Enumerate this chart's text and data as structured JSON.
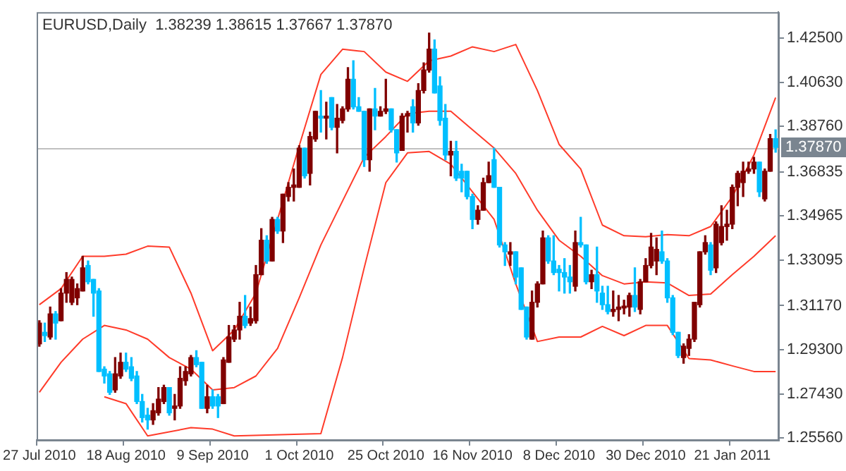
{
  "chart_data": {
    "type": "candlestick",
    "title": "EURUSD,Daily  1.38239 1.38615 1.37667 1.37870",
    "categories": [
      "27 Jul 2010",
      null,
      null,
      null,
      null,
      null,
      null,
      null,
      null,
      null,
      null,
      null,
      null,
      null,
      null,
      null,
      "18 Aug 2010",
      null,
      null,
      null,
      null,
      null,
      null,
      null,
      null,
      null,
      null,
      null,
      null,
      null,
      null,
      null,
      "9 Sep 2010",
      null,
      null,
      null,
      null,
      null,
      null,
      null,
      null,
      null,
      null,
      null,
      null,
      null,
      null,
      null,
      "1 Oct 2010",
      null,
      null,
      null,
      null,
      null,
      null,
      null,
      null,
      null,
      null,
      null,
      null,
      null,
      null,
      null,
      "25 Oct 2010",
      null,
      null,
      null,
      null,
      null,
      null,
      null,
      null,
      null,
      null,
      null,
      null,
      null,
      null,
      null,
      "16 Nov 2010",
      null,
      null,
      null,
      null,
      null,
      null,
      null,
      null,
      null,
      null,
      null,
      null,
      null,
      null,
      null,
      "8 Dec 2010",
      null,
      null,
      null,
      null,
      null,
      null,
      null,
      null,
      null,
      null,
      null,
      null,
      null,
      null,
      null,
      "30 Dec 2010",
      null,
      null,
      null,
      null,
      null,
      null,
      null,
      null,
      null,
      null,
      null,
      null,
      null,
      null,
      null,
      "21 Jan 2011",
      null,
      null,
      null,
      null,
      null,
      null,
      null,
      null
    ],
    "ohlc": [
      [
        1.2955,
        1.3053,
        1.2945,
        1.3043
      ],
      [
        1.3004,
        1.3043,
        1.2965,
        1.299
      ],
      [
        1.2984,
        1.3111,
        1.2975,
        1.3082
      ],
      [
        1.3082,
        1.3092,
        1.2975,
        1.3043
      ],
      [
        1.3053,
        1.3189,
        1.3053,
        1.317
      ],
      [
        1.317,
        1.3257,
        1.3131,
        1.3228
      ],
      [
        1.3131,
        1.3238,
        1.3121,
        1.3228
      ],
      [
        1.315,
        1.3209,
        1.3121,
        1.3189
      ],
      [
        1.3179,
        1.3326,
        1.3179,
        1.3277
      ],
      [
        1.3287,
        1.3306,
        1.3209,
        1.3218
      ],
      [
        1.3228,
        1.3228,
        1.3072,
        1.317
      ],
      [
        1.3179,
        1.3189,
        1.2838,
        1.2838
      ],
      [
        1.2848,
        1.2858,
        1.2789,
        1.2819
      ],
      [
        1.2828,
        1.2838,
        1.2741,
        1.275
      ],
      [
        1.276,
        1.2897,
        1.275,
        1.2828
      ],
      [
        1.2819,
        1.2916,
        1.2809,
        1.2877
      ],
      [
        1.2877,
        1.2916,
        1.2838,
        1.2848
      ],
      [
        1.2858,
        1.2897,
        1.2799,
        1.2809
      ],
      [
        1.2819,
        1.2838,
        1.2702,
        1.2711
      ],
      [
        1.2711,
        1.2741,
        1.2624,
        1.2643
      ],
      [
        1.2653,
        1.2682,
        1.2594,
        1.2633
      ],
      [
        1.2633,
        1.2702,
        1.2614,
        1.2672
      ],
      [
        1.2663,
        1.277,
        1.2653,
        1.2721
      ],
      [
        1.2711,
        1.278,
        1.2702,
        1.277
      ],
      [
        1.277,
        1.277,
        1.2653,
        1.2663
      ],
      [
        1.2682,
        1.2741,
        1.2633,
        1.2692
      ],
      [
        1.2692,
        1.2858,
        1.2682,
        1.2809
      ],
      [
        1.2799,
        1.2858,
        1.278,
        1.2838
      ],
      [
        1.2828,
        1.2906,
        1.2819,
        1.2897
      ],
      [
        1.2897,
        1.2926,
        1.2858,
        1.2867
      ],
      [
        1.2877,
        1.2877,
        1.2682,
        1.2682
      ],
      [
        1.2682,
        1.278,
        1.2663,
        1.2731
      ],
      [
        1.2731,
        1.276,
        1.2682,
        1.2692
      ],
      [
        1.2731,
        1.2741,
        1.2643,
        1.2692
      ],
      [
        1.2702,
        1.2897,
        1.2702,
        1.2887
      ],
      [
        1.2877,
        1.3033,
        1.2877,
        1.2984
      ],
      [
        1.2975,
        1.3033,
        1.2965,
        1.3014
      ],
      [
        1.3014,
        1.3131,
        1.2975,
        1.3072
      ],
      [
        1.3072,
        1.316,
        1.3023,
        1.3033
      ],
      [
        1.3043,
        1.3111,
        1.3033,
        1.3062
      ],
      [
        1.3053,
        1.3287,
        1.3043,
        1.3248
      ],
      [
        1.3248,
        1.3443,
        1.3248,
        1.3394
      ],
      [
        1.3394,
        1.3413,
        1.3296,
        1.3306
      ],
      [
        1.3306,
        1.3491,
        1.3306,
        1.3482
      ],
      [
        1.3482,
        1.3491,
        1.3423,
        1.3433
      ],
      [
        1.3433,
        1.3589,
        1.3384,
        1.3589
      ],
      [
        1.3579,
        1.3638,
        1.356,
        1.3618
      ],
      [
        1.3618,
        1.3696,
        1.356,
        1.3628
      ],
      [
        1.3618,
        1.3794,
        1.3618,
        1.3784
      ],
      [
        1.3784,
        1.3784,
        1.3657,
        1.3667
      ],
      [
        1.3677,
        1.3852,
        1.3628,
        1.3833
      ],
      [
        1.3823,
        1.394,
        1.3813,
        1.394
      ],
      [
        1.392,
        1.4028,
        1.3852,
        1.3911
      ],
      [
        1.3911,
        1.3979,
        1.3823,
        1.392
      ],
      [
        1.3998,
        1.3998,
        1.3862,
        1.3872
      ],
      [
        1.3872,
        1.3969,
        1.3764,
        1.3911
      ],
      [
        1.3901,
        1.3959,
        1.3891,
        1.395
      ],
      [
        1.395,
        1.4125,
        1.394,
        1.4076
      ],
      [
        1.4076,
        1.4154,
        1.395,
        1.3959
      ],
      [
        1.3959,
        1.3998,
        1.394,
        1.394
      ],
      [
        1.394,
        1.394,
        1.3706,
        1.3735
      ],
      [
        1.3735,
        1.395,
        1.3686,
        1.395
      ],
      [
        1.395,
        1.4037,
        1.3862,
        1.392
      ],
      [
        1.392,
        1.3959,
        1.392,
        1.394
      ],
      [
        1.394,
        1.4076,
        1.393,
        1.395
      ],
      [
        1.395,
        1.395,
        1.3852,
        1.3862
      ],
      [
        1.3862,
        1.3862,
        1.3725,
        1.3764
      ],
      [
        1.3774,
        1.393,
        1.3774,
        1.392
      ],
      [
        1.392,
        1.394,
        1.3852,
        1.393
      ],
      [
        1.3959,
        1.3989,
        1.3852,
        1.3891
      ],
      [
        1.3891,
        1.4057,
        1.3881,
        1.4028
      ],
      [
        1.4028,
        1.4145,
        1.4018,
        1.4115
      ],
      [
        1.4115,
        1.4271,
        1.4106,
        1.4203
      ],
      [
        1.4203,
        1.4242,
        1.4018,
        1.4018
      ],
      [
        1.4047,
        1.4086,
        1.3881,
        1.3901
      ],
      [
        1.3911,
        1.3969,
        1.3735,
        1.3755
      ],
      [
        1.3755,
        1.3813,
        1.3667,
        1.377
      ],
      [
        1.377,
        1.3813,
        1.3647,
        1.3657
      ],
      [
        1.3686,
        1.3716,
        1.3599,
        1.3657
      ],
      [
        1.3686,
        1.3686,
        1.3569,
        1.3579
      ],
      [
        1.3579,
        1.3589,
        1.3443,
        1.3482
      ],
      [
        1.3482,
        1.354,
        1.3462,
        1.3521
      ],
      [
        1.3521,
        1.3657,
        1.3521,
        1.3638
      ],
      [
        1.3638,
        1.3725,
        1.3638,
        1.3667
      ],
      [
        1.3735,
        1.3784,
        1.3618,
        1.3618
      ],
      [
        1.3618,
        1.3618,
        1.3365,
        1.3374
      ],
      [
        1.3374,
        1.3384,
        1.3287,
        1.3345
      ],
      [
        1.3335,
        1.3384,
        1.3287,
        1.3345
      ],
      [
        1.3345,
        1.3345,
        1.3209,
        1.3238
      ],
      [
        1.3277,
        1.3277,
        1.3101,
        1.3101
      ],
      [
        1.3111,
        1.3111,
        1.2975,
        1.2984
      ],
      [
        1.2975,
        1.3179,
        1.2975,
        1.3131
      ],
      [
        1.3131,
        1.3218,
        1.3111,
        1.3209
      ],
      [
        1.3209,
        1.3433,
        1.3209,
        1.3404
      ],
      [
        1.3404,
        1.3413,
        1.3296,
        1.3306
      ],
      [
        1.3306,
        1.3413,
        1.3248,
        1.3257
      ],
      [
        1.3271,
        1.3287,
        1.3179,
        1.3257
      ],
      [
        1.3257,
        1.3316,
        1.317,
        1.3238
      ],
      [
        1.3238,
        1.3287,
        1.317,
        1.3218
      ],
      [
        1.3199,
        1.3433,
        1.3179,
        1.3384
      ],
      [
        1.3384,
        1.3491,
        1.3365,
        1.3374
      ],
      [
        1.3374,
        1.3374,
        1.3209,
        1.3218
      ],
      [
        1.3218,
        1.3267,
        1.3189,
        1.3248
      ],
      [
        1.3248,
        1.3365,
        1.3131,
        1.3179
      ],
      [
        1.317,
        1.3199,
        1.3101,
        1.3121
      ],
      [
        1.3121,
        1.3199,
        1.3082,
        1.3092
      ],
      [
        1.3092,
        1.3179,
        1.3072,
        1.3101
      ],
      [
        1.3101,
        1.316,
        1.3053,
        1.3111
      ],
      [
        1.3107,
        1.314,
        1.3082,
        1.3115
      ],
      [
        1.3111,
        1.317,
        1.3072,
        1.316
      ],
      [
        1.316,
        1.3277,
        1.3092,
        1.3111
      ],
      [
        1.3101,
        1.3228,
        1.3082,
        1.3218
      ],
      [
        1.3218,
        1.3316,
        1.3218,
        1.3287
      ],
      [
        1.3287,
        1.3423,
        1.3277,
        1.3365
      ],
      [
        1.3306,
        1.3404,
        1.3248,
        1.3355
      ],
      [
        1.3345,
        1.3433,
        1.3296,
        1.3306
      ],
      [
        1.3306,
        1.3316,
        1.3131,
        1.315
      ],
      [
        1.315,
        1.316,
        1.2994,
        1.3004
      ],
      [
        1.3004,
        1.3004,
        1.2897,
        1.2906
      ],
      [
        1.2897,
        1.2955,
        1.2873,
        1.2945
      ],
      [
        1.2936,
        1.2994,
        1.2906,
        1.2975
      ],
      [
        1.2975,
        1.3131,
        1.2965,
        1.3131
      ],
      [
        1.3121,
        1.3345,
        1.3111,
        1.3345
      ],
      [
        1.3345,
        1.3413,
        1.3335,
        1.3384
      ],
      [
        1.3374,
        1.3384,
        1.3248,
        1.3267
      ],
      [
        1.3277,
        1.3472,
        1.3257,
        1.3462
      ],
      [
        1.3384,
        1.354,
        1.3374,
        1.3452
      ],
      [
        1.3452,
        1.3521,
        1.3394,
        1.3462
      ],
      [
        1.3462,
        1.3628,
        1.3443,
        1.3618
      ],
      [
        1.3618,
        1.3686,
        1.354,
        1.3677
      ],
      [
        1.3638,
        1.3725,
        1.3579,
        1.3686
      ],
      [
        1.3686,
        1.3725,
        1.3677,
        1.3696
      ],
      [
        1.3696,
        1.3745,
        1.3677,
        1.3725
      ],
      [
        1.3725,
        1.3725,
        1.3579,
        1.3599
      ],
      [
        1.3569,
        1.3696,
        1.356,
        1.3686
      ],
      [
        1.3686,
        1.3842,
        1.3686,
        1.3824
      ],
      [
        1.38239,
        1.38615,
        1.37667,
        1.3787
      ]
    ],
    "colors": [
      "#800000",
      "#00bfff",
      "#800000",
      "#00bfff",
      "#800000",
      "#800000",
      "#800000",
      "#800000",
      "#800000",
      "#00bfff",
      "#00bfff",
      "#00bfff",
      "#00bfff",
      "#00bfff",
      "#800000",
      "#800000",
      "#00bfff",
      "#00bfff",
      "#00bfff",
      "#00bfff",
      "#00bfff",
      "#800000",
      "#800000",
      "#800000",
      "#00bfff",
      "#800000",
      "#800000",
      "#800000",
      "#800000",
      "#00bfff",
      "#00bfff",
      "#800000",
      "#00bfff",
      "#00bfff",
      "#800000",
      "#800000",
      "#800000",
      "#800000",
      "#00bfff",
      "#800000",
      "#800000",
      "#800000",
      "#00bfff",
      "#800000",
      "#00bfff",
      "#800000",
      "#800000",
      "#800000",
      "#800000",
      "#00bfff",
      "#800000",
      "#800000",
      "#00bfff",
      "#800000",
      "#00bfff",
      "#800000",
      "#800000",
      "#800000",
      "#00bfff",
      "#00bfff",
      "#00bfff",
      "#800000",
      "#00bfff",
      "#800000",
      "#800000",
      "#00bfff",
      "#00bfff",
      "#800000",
      "#800000",
      "#00bfff",
      "#800000",
      "#800000",
      "#800000",
      "#00bfff",
      "#00bfff",
      "#00bfff",
      "#800000",
      "#00bfff",
      "#00bfff",
      "#00bfff",
      "#00bfff",
      "#800000",
      "#800000",
      "#800000",
      "#00bfff",
      "#00bfff",
      "#00bfff",
      "#800000",
      "#00bfff",
      "#00bfff",
      "#00bfff",
      "#800000",
      "#800000",
      "#800000",
      "#00bfff",
      "#00bfff",
      "#00bfff",
      "#00bfff",
      "#00bfff",
      "#800000",
      "#00bfff",
      "#00bfff",
      "#800000",
      "#00bfff",
      "#00bfff",
      "#00bfff",
      "#800000",
      "#800000",
      "#800000",
      "#800000",
      "#00bfff",
      "#800000",
      "#800000",
      "#800000",
      "#800000",
      "#00bfff",
      "#00bfff",
      "#00bfff",
      "#00bfff",
      "#800000",
      "#800000",
      "#800000",
      "#800000",
      "#800000",
      "#00bfff",
      "#800000",
      "#800000",
      "#800000",
      "#800000",
      "#800000",
      "#800000",
      "#800000",
      "#800000",
      "#00bfff",
      "#800000",
      "#800000",
      "#00bfff"
    ],
    "series": [
      {
        "type": "line",
        "color": "#ff3b2a",
        "values": [
          1.3121,
          null,
          null,
          null,
          1.3189,
          null,
          null,
          null,
          1.3326,
          null,
          null,
          null,
          1.3326,
          null,
          null,
          null,
          1.3335,
          null,
          null,
          null,
          1.3369,
          null,
          null,
          null,
          1.3365,
          null,
          null,
          null,
          1.317,
          null,
          null,
          null,
          1.2926,
          null,
          null,
          null,
          1.3014,
          null,
          null,
          null,
          1.317,
          null,
          null,
          null,
          1.3482,
          null,
          null,
          null,
          1.3794,
          null,
          null,
          null,
          1.4096,
          null,
          null,
          null,
          1.4203,
          null,
          null,
          null,
          1.4193,
          null,
          null,
          null,
          1.4106,
          null,
          null,
          null,
          1.4067,
          null,
          null,
          null,
          1.4154,
          null,
          null,
          null,
          1.4174,
          null,
          null,
          null,
          1.4213,
          null,
          null,
          null,
          1.4193,
          null,
          null,
          null,
          1.4223,
          null,
          null,
          null,
          1.4028,
          null,
          null,
          null,
          1.38,
          null,
          null,
          null,
          1.3696,
          null,
          null,
          null,
          1.3458,
          null,
          null,
          null,
          1.3413,
          null,
          null,
          null,
          1.3409,
          null,
          null,
          null,
          1.3418,
          null,
          null,
          null,
          1.3413,
          null,
          null,
          null,
          1.3452,
          null,
          null,
          null,
          1.3579,
          null,
          null,
          null,
          1.3755,
          null,
          null,
          null,
          1.3998
        ]
      },
      {
        "type": "line",
        "color": "#ff3b2a",
        "values": [
          1.275,
          null,
          null,
          null,
          1.2877,
          null,
          null,
          null,
          1.2975,
          null,
          null,
          null,
          1.3033,
          null,
          null,
          null,
          1.3014,
          null,
          null,
          null,
          1.2975,
          null,
          null,
          null,
          1.2897,
          null,
          null,
          null,
          1.2848,
          null,
          null,
          null,
          1.276,
          null,
          null,
          null,
          1.277,
          null,
          null,
          null,
          1.2819,
          null,
          null,
          null,
          1.2936,
          null,
          null,
          null,
          1.315,
          null,
          null,
          null,
          1.3374,
          null,
          null,
          null,
          1.356,
          null,
          null,
          null,
          1.3745,
          null,
          null,
          null,
          1.3833,
          null,
          null,
          null,
          1.393,
          null,
          null,
          null,
          1.394,
          null,
          null,
          null,
          1.394,
          null,
          null,
          null,
          1.3862,
          null,
          null,
          null,
          1.3784,
          null,
          null,
          null,
          1.3677,
          null,
          null,
          null,
          1.3521,
          null,
          null,
          null,
          1.3394,
          null,
          null,
          null,
          1.3326,
          null,
          null,
          null,
          1.3244,
          null,
          null,
          null,
          1.3209,
          null,
          null,
          null,
          1.3218,
          null,
          null,
          null,
          1.3213,
          null,
          null,
          null,
          1.316,
          null,
          null,
          null,
          1.3166,
          null,
          null,
          null,
          1.3248,
          null,
          null,
          null,
          1.3326,
          null,
          null,
          null,
          1.3413
        ]
      },
      {
        "type": "line",
        "color": "#ff3b2a",
        "values": [
          null,
          null,
          null,
          null,
          null,
          null,
          null,
          null,
          null,
          null,
          null,
          null,
          1.2731,
          null,
          null,
          null,
          1.2702,
          null,
          null,
          null,
          1.2565,
          null,
          null,
          null,
          null,
          null,
          null,
          null,
          1.26,
          null,
          null,
          null,
          1.2594,
          null,
          null,
          null,
          1.2565,
          null,
          null,
          null,
          null,
          null,
          null,
          null,
          null,
          null,
          null,
          null,
          null,
          null,
          null,
          null,
          1.2575,
          null,
          null,
          null,
          1.2897,
          null,
          null,
          null,
          1.3277,
          null,
          null,
          null,
          1.3638,
          null,
          null,
          null,
          1.3764,
          null,
          null,
          null,
          1.377,
          null,
          null,
          null,
          1.3716,
          null,
          null,
          null,
          1.3599,
          null,
          null,
          null,
          1.3482,
          null,
          null,
          null,
          1.3209,
          null,
          null,
          null,
          1.2965,
          null,
          null,
          null,
          1.2984,
          null,
          null,
          null,
          1.2984,
          null,
          null,
          null,
          1.3029,
          null,
          null,
          null,
          1.299,
          null,
          null,
          null,
          1.3033,
          null,
          null,
          null,
          1.3033,
          null,
          null,
          null,
          1.2893,
          null,
          null,
          null,
          1.2887,
          null,
          null,
          null,
          1.2862,
          null,
          null,
          null,
          1.2838,
          null,
          null,
          null,
          1.2838
        ]
      }
    ],
    "ylim": [
      1.2548,
      1.436
    ],
    "yticks": [
      {
        "value": 1.425,
        "label": "1.42500"
      },
      {
        "value": 1.4063,
        "label": "1.40630"
      },
      {
        "value": 1.3876,
        "label": "1.38760"
      },
      {
        "value": 1.36835,
        "label": "1.36835"
      },
      {
        "value": 1.34965,
        "label": "1.34965"
      },
      {
        "value": 1.33095,
        "label": "1.33095"
      },
      {
        "value": 1.3117,
        "label": "1.31170"
      },
      {
        "value": 1.293,
        "label": "1.29300"
      },
      {
        "value": 1.2743,
        "label": "1.27430"
      },
      {
        "value": 1.2556,
        "label": "1.25560"
      }
    ],
    "ref_lines": [
      {
        "axis": "y",
        "value": 1.3787,
        "label": "1.37870",
        "color": "#c0c0c0"
      }
    ],
    "marker": "none",
    "grid": false,
    "legend": false
  }
}
